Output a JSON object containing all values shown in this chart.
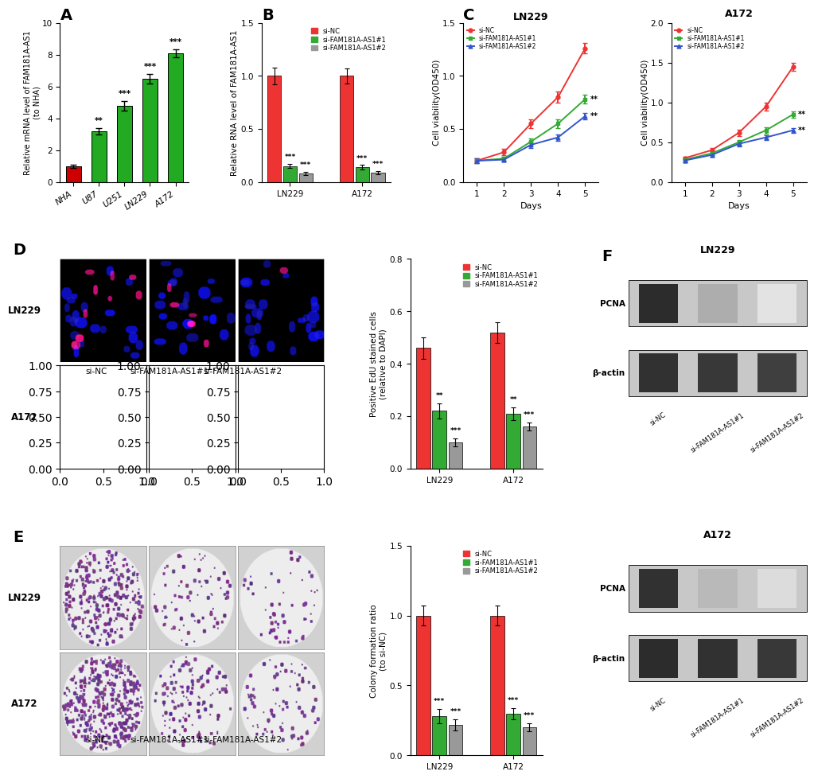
{
  "panel_A": {
    "categories": [
      "NHA",
      "U87",
      "U251",
      "LN229",
      "A172"
    ],
    "values": [
      1.0,
      3.2,
      4.8,
      6.5,
      8.1
    ],
    "errors": [
      0.1,
      0.2,
      0.3,
      0.3,
      0.25
    ],
    "bar_colors": [
      "#cc0000",
      "#22aa22",
      "#22aa22",
      "#22aa22",
      "#22aa22"
    ],
    "ylabel": "Relative mRNA level of FAM181A-AS1\n(to NHA)",
    "ylim": [
      0,
      10
    ],
    "yticks": [
      0,
      2,
      4,
      6,
      8,
      10
    ],
    "significance": [
      "",
      "**",
      "***",
      "***",
      "***"
    ],
    "label": "A"
  },
  "panel_B": {
    "groups": [
      "LN229",
      "A172"
    ],
    "conditions": [
      "si-NC",
      "si-FAM181A-AS1#1",
      "si-FAM181A-AS1#2"
    ],
    "values": [
      [
        1.0,
        0.15,
        0.08
      ],
      [
        1.0,
        0.14,
        0.09
      ]
    ],
    "errors": [
      [
        0.08,
        0.02,
        0.015
      ],
      [
        0.07,
        0.02,
        0.015
      ]
    ],
    "bar_colors": [
      "#ee3333",
      "#33aa33",
      "#999999"
    ],
    "ylabel": "Relative RNA level of FAM181A-AS1",
    "ylim": [
      0,
      1.5
    ],
    "yticks": [
      0.0,
      0.5,
      1.0,
      1.5
    ],
    "significance": [
      [
        "",
        "***",
        "***"
      ],
      [
        "",
        "***",
        "***"
      ]
    ],
    "label": "B"
  },
  "panel_C_LN229": {
    "days": [
      1,
      2,
      3,
      4,
      5
    ],
    "si_NC": [
      0.2,
      0.28,
      0.55,
      0.8,
      1.26
    ],
    "si_1": [
      0.2,
      0.22,
      0.38,
      0.55,
      0.78
    ],
    "si_2": [
      0.2,
      0.21,
      0.35,
      0.42,
      0.62
    ],
    "si_NC_err": [
      0.02,
      0.03,
      0.04,
      0.05,
      0.05
    ],
    "si_1_err": [
      0.02,
      0.02,
      0.03,
      0.04,
      0.04
    ],
    "si_2_err": [
      0.02,
      0.02,
      0.03,
      0.03,
      0.03
    ],
    "colors": [
      "#ee3333",
      "#33aa33",
      "#3355cc"
    ],
    "ylabel": "Cell viability(OD450)",
    "ylim": [
      0.0,
      1.5
    ],
    "yticks": [
      0.0,
      0.5,
      1.0,
      1.5
    ],
    "title": "LN229",
    "label": "C"
  },
  "panel_C_A172": {
    "days": [
      1,
      2,
      3,
      4,
      5
    ],
    "si_NC": [
      0.3,
      0.4,
      0.62,
      0.95,
      1.45
    ],
    "si_1": [
      0.28,
      0.36,
      0.5,
      0.65,
      0.85
    ],
    "si_2": [
      0.27,
      0.34,
      0.48,
      0.56,
      0.65
    ],
    "si_NC_err": [
      0.02,
      0.03,
      0.04,
      0.05,
      0.05
    ],
    "si_1_err": [
      0.02,
      0.02,
      0.03,
      0.04,
      0.04
    ],
    "si_2_err": [
      0.02,
      0.02,
      0.03,
      0.03,
      0.03
    ],
    "colors": [
      "#ee3333",
      "#33aa33",
      "#3355cc"
    ],
    "ylabel": "Cell viability(OD450)",
    "ylim": [
      0.0,
      2.0
    ],
    "yticks": [
      0.0,
      0.5,
      1.0,
      1.5,
      2.0
    ],
    "title": "A172"
  },
  "panel_D_bar": {
    "groups": [
      "LN229",
      "A172"
    ],
    "conditions": [
      "si-NC",
      "si-FAM181A-AS1#1",
      "si-FAM181A-AS1#2"
    ],
    "values": [
      [
        0.46,
        0.22,
        0.1
      ],
      [
        0.52,
        0.21,
        0.16
      ]
    ],
    "errors": [
      [
        0.04,
        0.03,
        0.015
      ],
      [
        0.04,
        0.025,
        0.015
      ]
    ],
    "bar_colors": [
      "#ee3333",
      "#33aa33",
      "#999999"
    ],
    "ylabel": "Positive EdU stained cells\n(relative to DAPI)",
    "ylim": [
      0.0,
      0.8
    ],
    "yticks": [
      0.0,
      0.2,
      0.4,
      0.6,
      0.8
    ],
    "significance": [
      [
        "",
        "**",
        "***"
      ],
      [
        "",
        "**",
        "***"
      ]
    ]
  },
  "panel_E_bar": {
    "groups": [
      "LN229",
      "A172"
    ],
    "conditions": [
      "si-NC",
      "si-FAM181A-AS1#1",
      "si-FAM181A-AS1#2"
    ],
    "values": [
      [
        1.0,
        0.28,
        0.22
      ],
      [
        1.0,
        0.3,
        0.2
      ]
    ],
    "errors": [
      [
        0.07,
        0.05,
        0.04
      ],
      [
        0.07,
        0.04,
        0.03
      ]
    ],
    "bar_colors": [
      "#ee3333",
      "#33aa33",
      "#999999"
    ],
    "ylabel": "Colony formation ratio\n(to si-NC)",
    "ylim": [
      0.0,
      1.5
    ],
    "yticks": [
      0.0,
      0.5,
      1.0,
      1.5
    ],
    "significance": [
      [
        "",
        "***",
        "***"
      ],
      [
        "",
        "***",
        "***"
      ]
    ],
    "label": "E"
  },
  "legend_labels": [
    "si-NC",
    "si-FAM181A-AS1#1",
    "si-FAM181A-AS1#2"
  ],
  "wb_labels": [
    "si-NC",
    "si-FAM181A-AS1#1",
    "si-FAM181A-AS1#2"
  ],
  "wb_LN229_PCNA": [
    0.9,
    0.35,
    0.12
  ],
  "wb_LN229_actin": [
    0.88,
    0.85,
    0.82
  ],
  "wb_A172_PCNA": [
    0.88,
    0.3,
    0.15
  ],
  "wb_A172_actin": [
    0.9,
    0.88,
    0.85
  ]
}
